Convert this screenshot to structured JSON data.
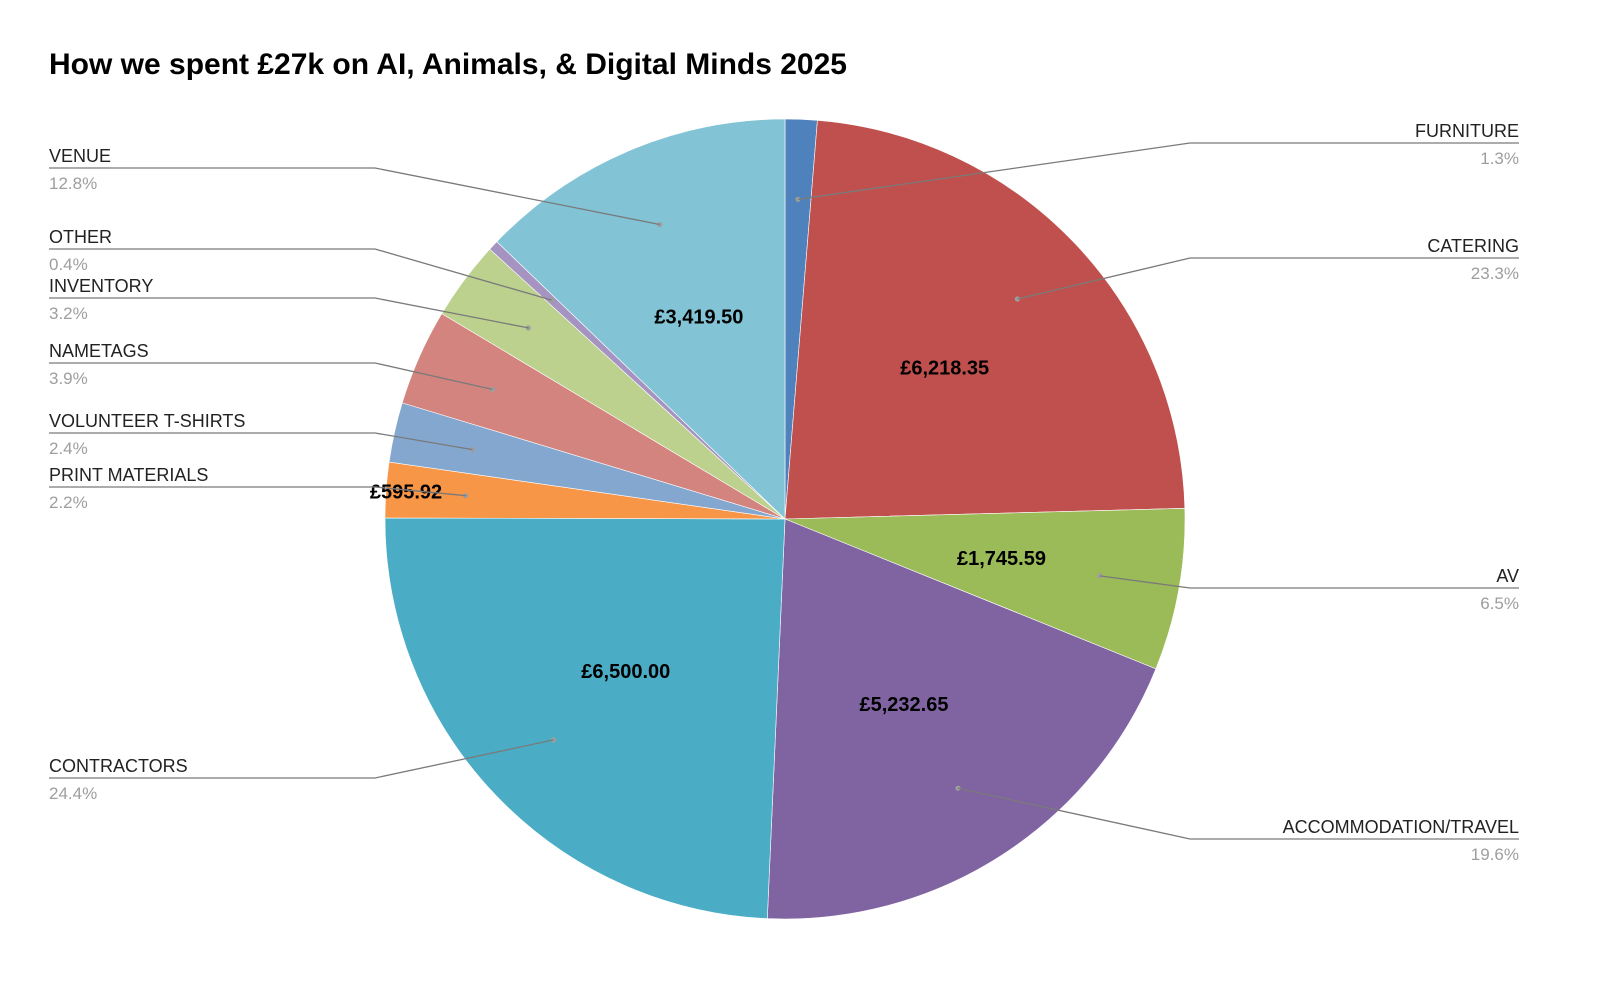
{
  "chart_data": {
    "type": "pie",
    "title": "How we spent £27k on AI, Animals, & Digital Minds 2025",
    "slices": [
      {
        "name": "FURNITURE",
        "percent_label": "1.3%",
        "value": 345,
        "value_label": "",
        "color": "#4f81bd"
      },
      {
        "name": "CATERING",
        "percent_label": "23.3%",
        "value": 6218.35,
        "value_label": "£6,218.35",
        "color": "#c0504d"
      },
      {
        "name": "AV",
        "percent_label": "6.5%",
        "value": 1745.59,
        "value_label": "£1,745.59",
        "color": "#9bbb59"
      },
      {
        "name": "ACCOMMODATION/TRAVEL",
        "percent_label": "19.6%",
        "value": 5232.65,
        "value_label": "£5,232.65",
        "color": "#8064a2"
      },
      {
        "name": "CONTRACTORS",
        "percent_label": "24.4%",
        "value": 6500.0,
        "value_label": "£6,500.00",
        "color": "#4bacc6"
      },
      {
        "name": "PRINT MATERIALS",
        "percent_label": "2.2%",
        "value": 595.92,
        "value_label": "£595.92",
        "color": "#f79646"
      },
      {
        "name": "VOLUNTEER T-SHIRTS",
        "percent_label": "2.4%",
        "value": 645,
        "value_label": "",
        "color": "#84a7cf"
      },
      {
        "name": "NAMETAGS",
        "percent_label": "3.9%",
        "value": 1040,
        "value_label": "",
        "color": "#d3847f"
      },
      {
        "name": "INVENTORY",
        "percent_label": "3.2%",
        "value": 855,
        "value_label": "",
        "color": "#bcd18e"
      },
      {
        "name": "OTHER",
        "percent_label": "0.4%",
        "value": 110,
        "value_label": "",
        "color": "#a594c2"
      },
      {
        "name": "VENUE",
        "percent_label": "12.8%",
        "value": 3419.5,
        "value_label": "£3,419.50",
        "color": "#82c4d6"
      }
    ]
  }
}
